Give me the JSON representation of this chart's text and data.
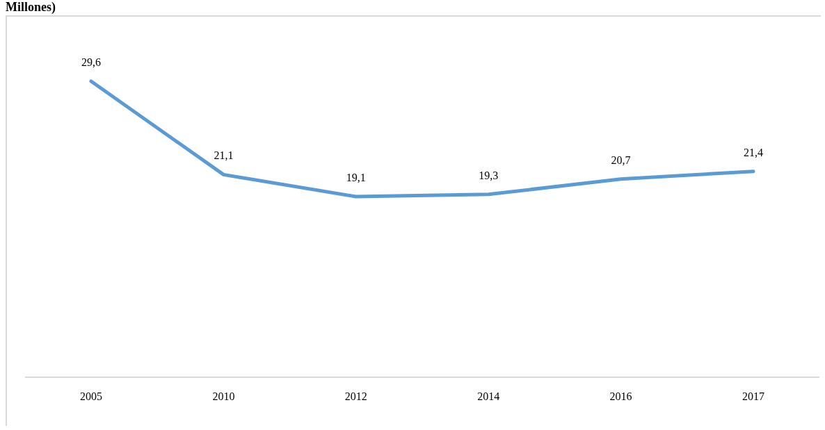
{
  "chart_data": {
    "type": "line",
    "title": "Millones)",
    "categories": [
      "2005",
      "2010",
      "2012",
      "2014",
      "2016",
      "2017"
    ],
    "series": [
      {
        "color": "#5b9bd5",
        "values": [
          29.6,
          21.1,
          19.1,
          19.3,
          20.7,
          21.4
        ],
        "value_labels": [
          "29,6",
          "21,1",
          "19,1",
          "19,3",
          "20,7",
          "21,4"
        ]
      }
    ],
    "tick_labels": "x",
    "marker": "none"
  }
}
